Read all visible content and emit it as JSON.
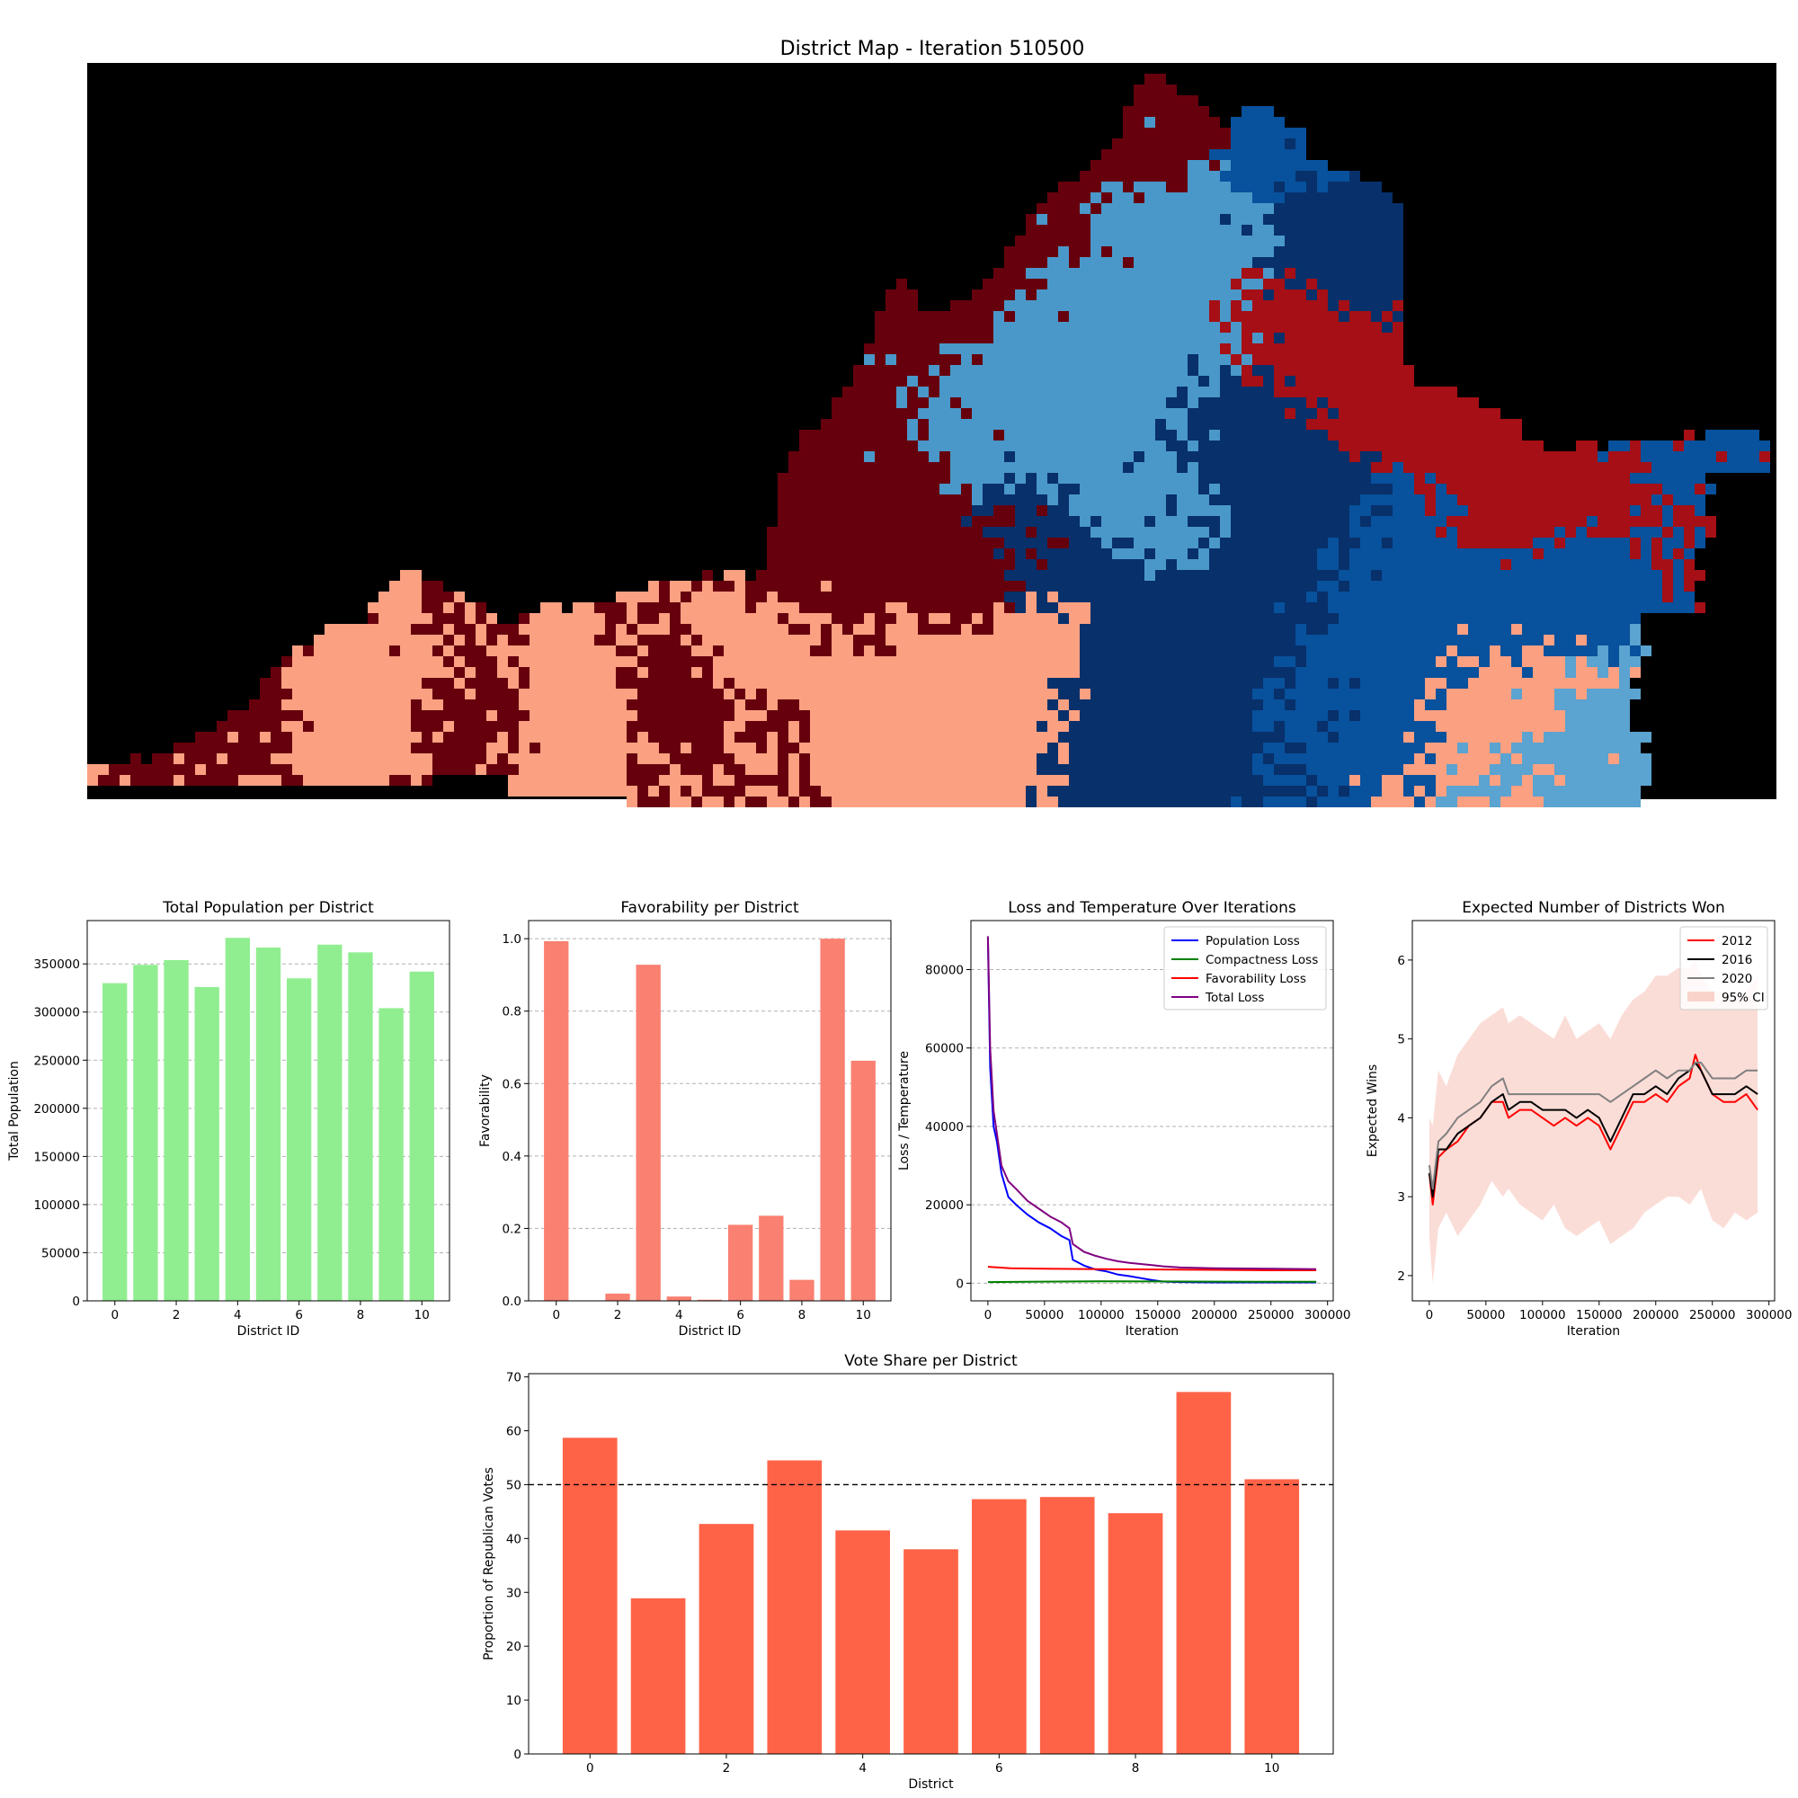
{
  "chart_data": [
    {
      "type": "heatmap",
      "title": "District Map - Iteration 510500",
      "colors": {
        "background": "#000000",
        "dark_red": "#67000d",
        "red": "#a50f15",
        "salmon": "#fca082",
        "navy": "#08306b",
        "blue": "#08519c",
        "light_blue": "#4a98c9",
        "sky": "#5ba3d0"
      }
    },
    {
      "type": "bar",
      "title": "Total Population per District",
      "xlabel": "District ID",
      "ylabel": "Total Population",
      "categories": [
        0,
        1,
        2,
        3,
        4,
        5,
        6,
        7,
        8,
        9,
        10
      ],
      "values": [
        330000,
        349000,
        354000,
        326000,
        377000,
        367000,
        335000,
        370000,
        362000,
        304000,
        342000
      ],
      "ylim": [
        0,
        395000
      ],
      "yticks": [
        0,
        50000,
        100000,
        150000,
        200000,
        250000,
        300000,
        350000
      ],
      "xticks": [
        0,
        2,
        4,
        6,
        8,
        10
      ],
      "color": "#90ee90",
      "grid": "y"
    },
    {
      "type": "bar",
      "title": "Favorability per District",
      "xlabel": "District ID",
      "ylabel": "Favorability",
      "categories": [
        0,
        1,
        2,
        3,
        4,
        5,
        6,
        7,
        8,
        9,
        10
      ],
      "values": [
        0.993,
        0.0,
        0.02,
        0.928,
        0.012,
        0.003,
        0.21,
        0.235,
        0.058,
        1.0,
        0.663
      ],
      "ylim": [
        0,
        1.05
      ],
      "yticks": [
        "0.0",
        "0.2",
        "0.4",
        "0.6",
        "0.8",
        "1.0"
      ],
      "xticks": [
        0,
        2,
        4,
        6,
        8,
        10
      ],
      "color": "#fa8072",
      "grid": "y"
    },
    {
      "type": "line",
      "title": "Loss and Temperature Over Iterations",
      "xlabel": "Iteration",
      "ylabel": "Loss / Temperature",
      "xlim": [
        -15000,
        305000
      ],
      "ylim": [
        -4500,
        92500
      ],
      "xticks": [
        0,
        50000,
        100000,
        150000,
        200000,
        250000,
        300000
      ],
      "yticks": [
        0,
        20000,
        40000,
        60000,
        80000
      ],
      "legend": "top-right",
      "grid": "y",
      "series": [
        {
          "name": "Population Loss",
          "color": "#0000ff",
          "x": [
            0,
            2000,
            5000,
            8000,
            12000,
            18000,
            25000,
            35000,
            45000,
            55000,
            65000,
            72000,
            75000,
            85000,
            95000,
            105000,
            115000,
            125000,
            135000,
            145000,
            155000,
            170000,
            200000,
            250000,
            290000
          ],
          "y": [
            88000,
            55000,
            40000,
            36000,
            28000,
            22000,
            20000,
            17500,
            15500,
            14000,
            12000,
            11000,
            6000,
            4500,
            3500,
            3000,
            2200,
            1800,
            1300,
            800,
            400,
            300,
            200,
            200,
            200
          ]
        },
        {
          "name": "Compactness Loss",
          "color": "#008000",
          "x": [
            0,
            50000,
            100000,
            150000,
            200000,
            250000,
            290000
          ],
          "y": [
            300,
            400,
            500,
            450,
            400,
            350,
            350
          ]
        },
        {
          "name": "Favorability Loss",
          "color": "#ff0000",
          "x": [
            0,
            20000,
            50000,
            100000,
            150000,
            200000,
            250000,
            290000
          ],
          "y": [
            4200,
            3800,
            3700,
            3600,
            3500,
            3400,
            3300,
            3300
          ]
        },
        {
          "name": "Total Loss",
          "color": "#800080",
          "x": [
            0,
            2000,
            5000,
            8000,
            12000,
            18000,
            25000,
            35000,
            45000,
            55000,
            65000,
            72000,
            75000,
            85000,
            95000,
            105000,
            115000,
            125000,
            135000,
            145000,
            155000,
            170000,
            200000,
            250000,
            290000
          ],
          "y": [
            88500,
            60000,
            44000,
            38000,
            30000,
            26000,
            24000,
            21000,
            19000,
            17000,
            15500,
            14000,
            10000,
            8000,
            7000,
            6200,
            5600,
            5200,
            4900,
            4600,
            4300,
            4000,
            3800,
            3700,
            3600
          ]
        }
      ]
    },
    {
      "type": "line",
      "title": "Expected Number of Districts Won",
      "xlabel": "Iteration",
      "ylabel": "Expected Wins",
      "xlim": [
        -15000,
        305000
      ],
      "ylim": [
        1.68,
        6.5
      ],
      "xticks": [
        0,
        50000,
        100000,
        150000,
        200000,
        250000,
        300000
      ],
      "yticks": [
        2,
        3,
        4,
        5,
        6
      ],
      "legend": "top-right",
      "x": [
        0,
        3000,
        8000,
        15000,
        25000,
        35000,
        45000,
        55000,
        65000,
        70000,
        80000,
        90000,
        100000,
        110000,
        120000,
        130000,
        140000,
        150000,
        160000,
        170000,
        180000,
        190000,
        200000,
        210000,
        220000,
        230000,
        235000,
        240000,
        250000,
        260000,
        270000,
        280000,
        290000
      ],
      "series": [
        {
          "name": "2012",
          "color": "#ff0000",
          "y": [
            3.3,
            2.9,
            3.5,
            3.6,
            3.7,
            3.9,
            4.0,
            4.2,
            4.2,
            4.0,
            4.1,
            4.1,
            4.0,
            3.9,
            4.0,
            3.9,
            4.0,
            3.9,
            3.6,
            3.9,
            4.2,
            4.2,
            4.3,
            4.2,
            4.4,
            4.5,
            4.8,
            4.6,
            4.3,
            4.2,
            4.2,
            4.3,
            4.1
          ]
        },
        {
          "name": "2016",
          "color": "#000000",
          "y": [
            3.3,
            3.0,
            3.6,
            3.6,
            3.8,
            3.9,
            4.0,
            4.2,
            4.3,
            4.1,
            4.2,
            4.2,
            4.1,
            4.1,
            4.1,
            4.0,
            4.1,
            4.0,
            3.7,
            4.0,
            4.3,
            4.3,
            4.4,
            4.3,
            4.5,
            4.6,
            4.7,
            4.6,
            4.3,
            4.3,
            4.3,
            4.4,
            4.3
          ]
        },
        {
          "name": "2020",
          "color": "#808080",
          "y": [
            3.4,
            3.1,
            3.7,
            3.8,
            4.0,
            4.1,
            4.2,
            4.4,
            4.5,
            4.3,
            4.3,
            4.3,
            4.3,
            4.3,
            4.3,
            4.3,
            4.3,
            4.3,
            4.2,
            4.3,
            4.4,
            4.5,
            4.6,
            4.5,
            4.6,
            4.6,
            4.7,
            4.7,
            4.5,
            4.5,
            4.5,
            4.6,
            4.6
          ]
        }
      ],
      "ci": {
        "name": "95% CI",
        "color": "#f4a99a",
        "lower": [
          2.5,
          1.9,
          2.6,
          2.8,
          2.5,
          2.7,
          2.9,
          3.2,
          3.0,
          3.1,
          2.9,
          2.8,
          2.7,
          2.9,
          2.6,
          2.5,
          2.6,
          2.7,
          2.4,
          2.5,
          2.6,
          2.8,
          2.9,
          3.0,
          3.0,
          2.9,
          3.0,
          3.1,
          2.7,
          2.6,
          2.8,
          2.7,
          2.8
        ],
        "upper": [
          4.0,
          3.9,
          4.6,
          4.4,
          4.8,
          5.0,
          5.2,
          5.3,
          5.4,
          5.2,
          5.3,
          5.2,
          5.1,
          5.0,
          5.3,
          5.0,
          5.1,
          5.2,
          5.0,
          5.3,
          5.5,
          5.6,
          5.8,
          5.8,
          5.9,
          5.9,
          6.0,
          5.8,
          5.6,
          5.6,
          5.5,
          5.6,
          5.8
        ]
      }
    },
    {
      "type": "bar",
      "title": "Vote Share per District",
      "xlabel": "District",
      "ylabel": "Proportion of Republican Votes",
      "categories": [
        0,
        1,
        2,
        3,
        4,
        5,
        6,
        7,
        8,
        9,
        10
      ],
      "values": [
        58.7,
        28.9,
        42.7,
        54.5,
        41.5,
        38.0,
        47.3,
        47.7,
        44.7,
        67.2,
        51.0
      ],
      "ylim": [
        0,
        70.6
      ],
      "yticks": [
        0,
        10,
        20,
        30,
        40,
        50,
        60,
        70
      ],
      "xticks": [
        0,
        2,
        4,
        6,
        8,
        10
      ],
      "threshold": 50,
      "color": "#ff6347"
    }
  ]
}
